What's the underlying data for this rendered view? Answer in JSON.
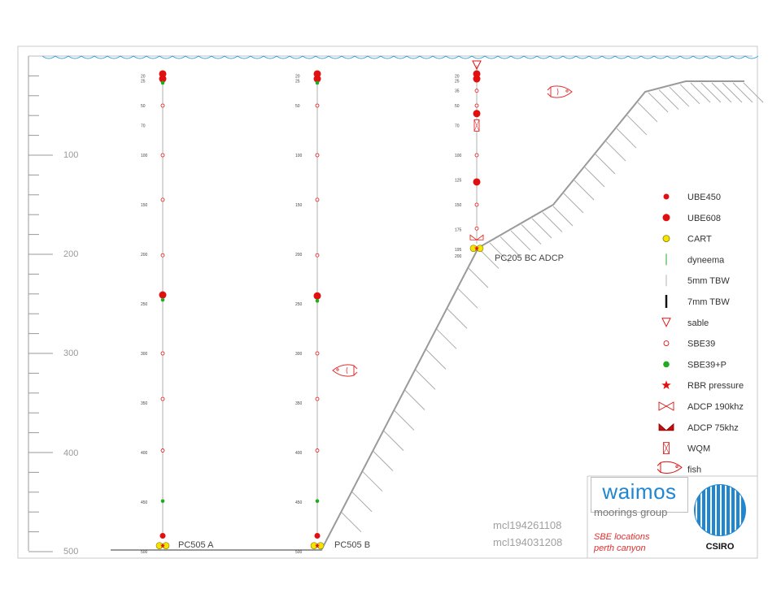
{
  "depth_scale": {
    "major_ticks": [
      "100",
      "200",
      "300",
      "400",
      "500"
    ]
  },
  "moorings": [
    {
      "name": "PC505 A",
      "depth_labels": [
        "20",
        "25",
        "50",
        "70",
        "100",
        "150",
        "200",
        "250",
        "300",
        "350",
        "400",
        "450",
        "500"
      ],
      "instruments": [
        {
          "type": "UBE608",
          "depth": 18
        },
        {
          "type": "UBE608",
          "depth": 23
        },
        {
          "type": "SBE39+P",
          "depth": 27
        },
        {
          "type": "SBE39",
          "depth": 50
        },
        {
          "type": "SBE39",
          "depth": 100
        },
        {
          "type": "SBE39",
          "depth": 145
        },
        {
          "type": "SBE39",
          "depth": 201
        },
        {
          "type": "UBE608",
          "depth": 241
        },
        {
          "type": "SBE39+P",
          "depth": 246
        },
        {
          "type": "SBE39",
          "depth": 300
        },
        {
          "type": "SBE39",
          "depth": 346
        },
        {
          "type": "SBE39",
          "depth": 398
        },
        {
          "type": "SBE39+P",
          "depth": 449
        },
        {
          "type": "UBE450",
          "depth": 484
        },
        {
          "type": "CART",
          "depth": 494
        }
      ]
    },
    {
      "name": "PC505 B",
      "depth_labels": [
        "20",
        "25",
        "50",
        "100",
        "150",
        "200",
        "250",
        "300",
        "350",
        "400",
        "450",
        "500"
      ],
      "instruments": [
        {
          "type": "UBE608",
          "depth": 18
        },
        {
          "type": "UBE608",
          "depth": 23
        },
        {
          "type": "SBE39+P",
          "depth": 27
        },
        {
          "type": "SBE39",
          "depth": 50
        },
        {
          "type": "SBE39",
          "depth": 100
        },
        {
          "type": "SBE39",
          "depth": 145
        },
        {
          "type": "SBE39",
          "depth": 201
        },
        {
          "type": "UBE608",
          "depth": 242
        },
        {
          "type": "SBE39+P",
          "depth": 247
        },
        {
          "type": "SBE39",
          "depth": 300
        },
        {
          "type": "SBE39",
          "depth": 346
        },
        {
          "type": "SBE39",
          "depth": 398
        },
        {
          "type": "SBE39+P",
          "depth": 449
        },
        {
          "type": "UBE450",
          "depth": 484
        },
        {
          "type": "CART",
          "depth": 494
        }
      ]
    },
    {
      "name": "PC205 BC ADCP",
      "depth_labels": [
        "20",
        "25",
        "35",
        "50",
        "70",
        "100",
        "125",
        "150",
        "175",
        "195",
        "200"
      ],
      "instruments": [
        {
          "type": "sable",
          "depth": 9
        },
        {
          "type": "UBE608",
          "depth": 18
        },
        {
          "type": "UBE608",
          "depth": 23
        },
        {
          "type": "SBE39",
          "depth": 35
        },
        {
          "type": "SBE39",
          "depth": 50
        },
        {
          "type": "UBE608",
          "depth": 58
        },
        {
          "type": "WQM",
          "depth": 70
        },
        {
          "type": "SBE39",
          "depth": 100
        },
        {
          "type": "UBE608",
          "depth": 127
        },
        {
          "type": "SBE39",
          "depth": 150
        },
        {
          "type": "SBE39",
          "depth": 174
        },
        {
          "type": "ADCP 190khz",
          "depth": 183
        },
        {
          "type": "CART",
          "depth": 194
        },
        {
          "type": "RBR pressure",
          "depth": 195
        }
      ]
    }
  ],
  "legend": [
    {
      "label": "UBE450",
      "symbol": "ube450"
    },
    {
      "label": "UBE608",
      "symbol": "ube608"
    },
    {
      "label": "CART",
      "symbol": "cart"
    },
    {
      "label": "dyneema",
      "symbol": "dyneema"
    },
    {
      "label": "5mm TBW",
      "symbol": "tbw5"
    },
    {
      "label": "7mm TBW",
      "symbol": "tbw7"
    },
    {
      "label": "sable",
      "symbol": "sable"
    },
    {
      "label": "SBE39",
      "symbol": "sbe39"
    },
    {
      "label": "SBE39+P",
      "symbol": "sbe39p"
    },
    {
      "label": "RBR pressure",
      "symbol": "rbr"
    },
    {
      "label": "ADCP 190khz",
      "symbol": "adcp190"
    },
    {
      "label": "ADCP  75khz",
      "symbol": "adcp75"
    },
    {
      "label": "WQM",
      "symbol": "wqm"
    },
    {
      "label": "fish",
      "symbol": "fish"
    }
  ],
  "mooring_codes": [
    "mcl194261108",
    "mcl194031208"
  ],
  "branding": {
    "waimos": "waimos",
    "moorings_group": "moorings group",
    "sbe_locations": "SBE locations",
    "perth_canyon": "perth canyon",
    "csiro": "CSIRO"
  },
  "colors": {
    "red": "#e01010",
    "yellow": "#f5e400",
    "green": "#22aa22",
    "water": "#3aa9e0",
    "slope": "#9a9a9a",
    "blue": "#1f86d1"
  }
}
